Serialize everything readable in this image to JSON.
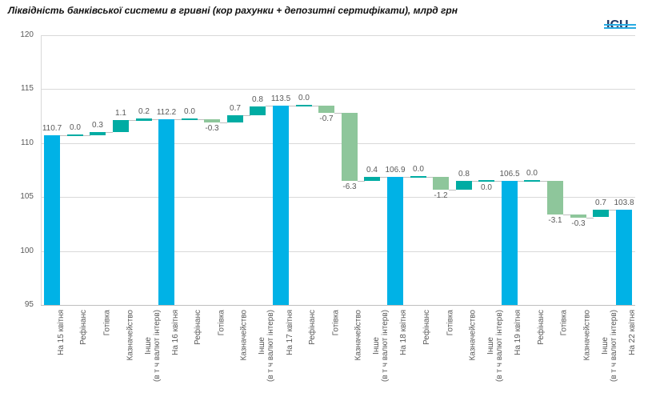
{
  "page": {
    "background": "#FFFFFF"
  },
  "logo": {
    "text": "ICU",
    "color": "#1F3864",
    "stripe_color": "#29ABE2"
  },
  "chart_data": {
    "type": "bar",
    "subtype": "waterfall",
    "title": "Ліквідність банківської системи в гривні (кор рахунки + депозитні сертифікати), млрд грн",
    "xlabel": "",
    "ylabel": "",
    "ylim": [
      95,
      120
    ],
    "yticks": [
      95,
      100,
      105,
      110,
      115,
      120
    ],
    "grid": true,
    "legend": "none",
    "colors": {
      "total": "#00B2E6",
      "positive": "#00ACA3",
      "negative": "#8EC69B",
      "value_label": "#595959",
      "axis_label": "#595959",
      "gridline": "#D9D9D9",
      "axisline": "#BFBFBF",
      "connector": "#BFBFBF"
    },
    "bars": [
      {
        "label": "На 15 квітня",
        "value": 110.7,
        "display": "110.7",
        "kind": "total"
      },
      {
        "label": "Рефінанс",
        "value": 0.0,
        "display": "0.0",
        "kind": "delta"
      },
      {
        "label": "Готівка",
        "value": 0.3,
        "display": "0.3",
        "kind": "delta"
      },
      {
        "label": "Казначейство",
        "value": 1.1,
        "display": "1.1",
        "kind": "delta"
      },
      {
        "label": "Інше\n(в т ч валют інтерв)",
        "value": 0.2,
        "display": "0.2",
        "kind": "delta"
      },
      {
        "label": "На 16 квітня",
        "value": 112.2,
        "display": "112.2",
        "kind": "total"
      },
      {
        "label": "Рефінанс",
        "value": 0.0,
        "display": "0.0",
        "kind": "delta"
      },
      {
        "label": "Готівка",
        "value": -0.3,
        "display": "-0.3",
        "kind": "delta"
      },
      {
        "label": "Казначейство",
        "value": 0.7,
        "display": "0.7",
        "kind": "delta"
      },
      {
        "label": "Інше\n(в т ч валют інтерв)",
        "value": 0.8,
        "display": "0.8",
        "kind": "delta"
      },
      {
        "label": "На 17 квітня",
        "value": 113.5,
        "display": "113.5",
        "kind": "total"
      },
      {
        "label": "Рефінанс",
        "value": 0.0,
        "display": "0.0",
        "kind": "delta"
      },
      {
        "label": "Готівка",
        "value": -0.7,
        "display": "-0.7",
        "kind": "delta"
      },
      {
        "label": "Казначейство",
        "value": -6.3,
        "display": "-6.3",
        "kind": "delta"
      },
      {
        "label": "Інше\n(в т ч валют інтерв)",
        "value": 0.4,
        "display": "0.4",
        "kind": "delta"
      },
      {
        "label": "На 18 квітня",
        "value": 106.9,
        "display": "106.9",
        "kind": "total"
      },
      {
        "label": "Рефінанс",
        "value": 0.0,
        "display": "0.0",
        "kind": "delta"
      },
      {
        "label": "Готівка",
        "value": -1.2,
        "display": "-1.2",
        "kind": "delta"
      },
      {
        "label": "Казначейство",
        "value": 0.8,
        "display": "0.8",
        "kind": "delta"
      },
      {
        "label": "Інше\n(в т ч валют інтерв)",
        "value": 0.0,
        "display": "0.0",
        "kind": "delta",
        "label_below": true
      },
      {
        "label": "На 19 квітня",
        "value": 106.5,
        "display": "106.5",
        "kind": "total"
      },
      {
        "label": "Рефінанс",
        "value": 0.0,
        "display": "0.0",
        "kind": "delta"
      },
      {
        "label": "Готівка",
        "value": -3.1,
        "display": "-3.1",
        "kind": "delta"
      },
      {
        "label": "Казначейство",
        "value": -0.3,
        "display": "-0.3",
        "kind": "delta"
      },
      {
        "label": "Інше\n(в т ч валют інтерв)",
        "value": 0.7,
        "display": "0.7",
        "kind": "delta"
      },
      {
        "label": "На 22 квітня",
        "value": 103.8,
        "display": "103.8",
        "kind": "total"
      }
    ]
  }
}
